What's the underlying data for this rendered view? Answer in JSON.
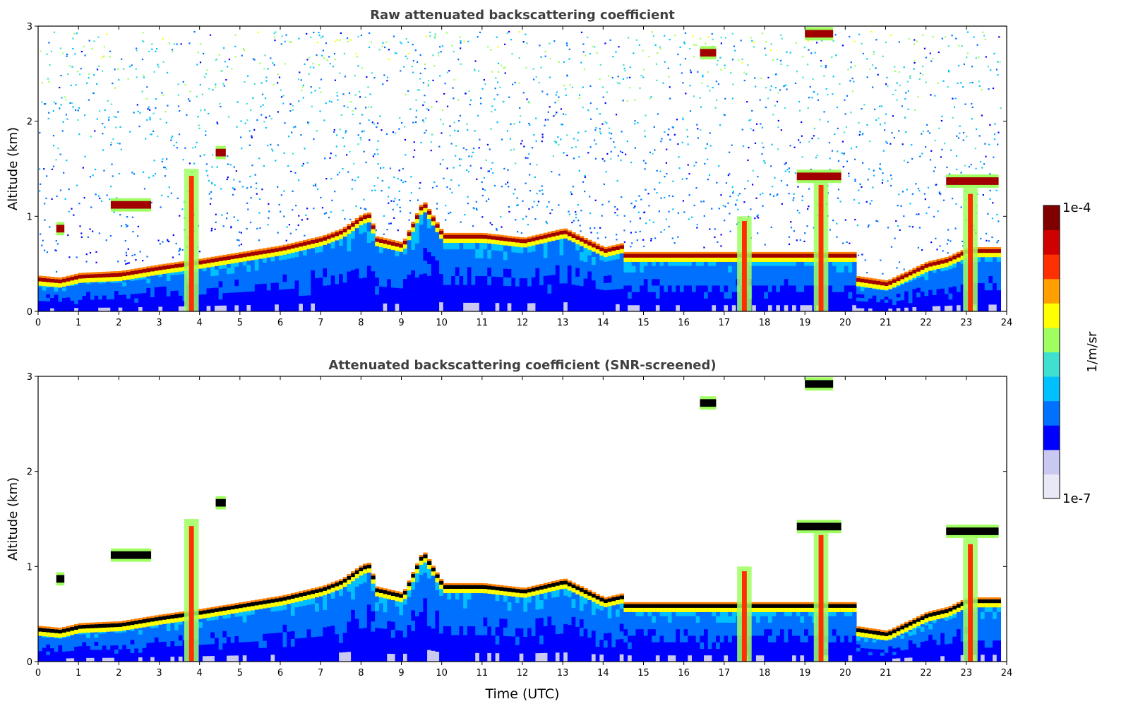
{
  "chart_data": [
    {
      "type": "heatmap",
      "title": "Raw attenuated backscattering coefficient",
      "xlabel": "",
      "ylabel": "Altitude (km)",
      "xlim": [
        0,
        24
      ],
      "ylim": [
        0,
        3
      ],
      "x_ticks": [
        0,
        1,
        2,
        3,
        4,
        5,
        6,
        7,
        8,
        9,
        10,
        11,
        12,
        13,
        14,
        15,
        16,
        17,
        18,
        19,
        20,
        21,
        22,
        23,
        24
      ],
      "y_ticks": [
        0,
        1,
        2,
        3
      ],
      "noise_above_layer": true,
      "colorscale": "jet",
      "layer_features": [
        {
          "kind": "boundary_layer",
          "points": [
            [
              0,
              0.3
            ],
            [
              0.5,
              0.28
            ],
            [
              1,
              0.33
            ],
            [
              2,
              0.35
            ],
            [
              3,
              0.42
            ],
            [
              4,
              0.48
            ],
            [
              5,
              0.55
            ],
            [
              6,
              0.62
            ],
            [
              7,
              0.72
            ],
            [
              7.5,
              0.8
            ],
            [
              8,
              0.95
            ],
            [
              8.2,
              0.97
            ],
            [
              8.3,
              0.72
            ],
            [
              9,
              0.65
            ],
            [
              9.5,
              1.1
            ],
            [
              10,
              0.75
            ],
            [
              11,
              0.75
            ],
            [
              12,
              0.7
            ],
            [
              13,
              0.8
            ],
            [
              14,
              0.6
            ],
            [
              14.5,
              0.65
            ]
          ]
        },
        {
          "kind": "boundary_layer",
          "points": [
            [
              20.2,
              0.3
            ],
            [
              21,
              0.25
            ],
            [
              22,
              0.45
            ],
            [
              22.5,
              0.5
            ],
            [
              23,
              0.6
            ],
            [
              23.8,
              0.6
            ]
          ]
        },
        {
          "kind": "cloud",
          "x": 1.8,
          "x_end": 2.8,
          "y": 1.1
        },
        {
          "kind": "cloud",
          "x": 0.45,
          "x_end": 0.65,
          "y": 0.85
        },
        {
          "kind": "cloud",
          "x": 4.4,
          "x_end": 4.65,
          "y": 1.65
        },
        {
          "kind": "cloud",
          "x": 18.8,
          "x_end": 19.9,
          "y": 1.4
        },
        {
          "kind": "cloud",
          "x": 19.0,
          "x_end": 19.7,
          "y": 2.9
        },
        {
          "kind": "cloud",
          "x": 16.4,
          "x_end": 16.8,
          "y": 2.7
        },
        {
          "kind": "cloud",
          "x": 22.5,
          "x_end": 23.8,
          "y": 1.35
        },
        {
          "kind": "precip",
          "x": 3.8,
          "y_top": 1.5
        },
        {
          "kind": "precip",
          "x": 17.5,
          "y_top": 1.0
        },
        {
          "kind": "precip",
          "x": 19.4,
          "y_top": 1.4
        },
        {
          "kind": "precip",
          "x": 23.1,
          "y_top": 1.3
        }
      ]
    },
    {
      "type": "heatmap",
      "title": "Attenuated backscattering coefficient (SNR-screened)",
      "xlabel": "Time (UTC)",
      "ylabel": "Altitude (km)",
      "xlim": [
        0,
        24
      ],
      "ylim": [
        0,
        3
      ],
      "x_ticks": [
        0,
        1,
        2,
        3,
        4,
        5,
        6,
        7,
        8,
        9,
        10,
        11,
        12,
        13,
        14,
        15,
        16,
        17,
        18,
        19,
        20,
        21,
        22,
        23,
        24
      ],
      "y_ticks": [
        0,
        1,
        2,
        3
      ],
      "noise_above_layer": false,
      "colorscale": "jet",
      "saturated_color": "#000000"
    }
  ],
  "colorbar": {
    "label": "1/m/sr",
    "max_label": "1e-4",
    "min_label": "1e-7",
    "colors": [
      "#e8e8f6",
      "#c8c8f0",
      "#0000ff",
      "#0070ff",
      "#00c0ff",
      "#40e0d0",
      "#a0ff60",
      "#ffff00",
      "#ffa000",
      "#ff3000",
      "#d00000",
      "#800000"
    ]
  }
}
